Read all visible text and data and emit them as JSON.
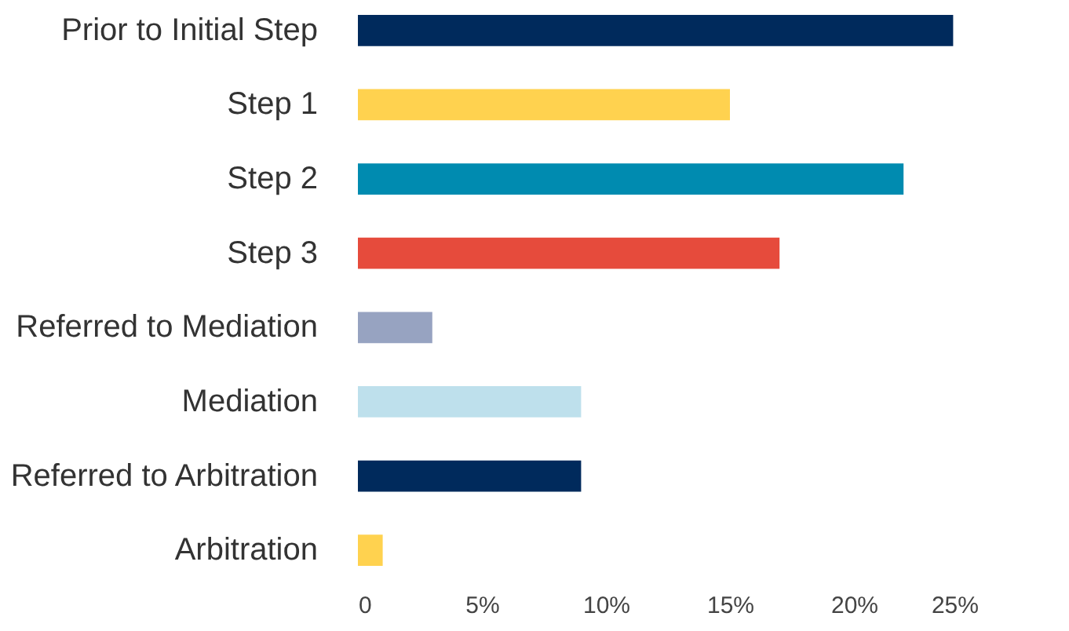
{
  "chart_data": {
    "type": "bar",
    "orientation": "horizontal",
    "categories": [
      "Prior to Initial Step",
      "Step 1",
      "Step 2",
      "Step 3",
      "Referred to Mediation",
      "Mediation",
      "Referred to Arbitration",
      "Arbitration"
    ],
    "values": [
      24,
      15,
      22,
      17,
      3,
      9,
      9,
      1
    ],
    "colors": [
      "#002a5c",
      "#ffd24f",
      "#008bb0",
      "#e64b3c",
      "#97a3c1",
      "#bee0ec",
      "#002a5c",
      "#ffd24f"
    ],
    "xlim": [
      0,
      25
    ],
    "xticks": [
      0,
      {
        "value": 5,
        "label": "5%"
      },
      {
        "value": 10,
        "label": "10%"
      },
      {
        "value": 15,
        "label": "15%"
      },
      {
        "value": 20,
        "label": "20%"
      },
      {
        "value": 25,
        "label": "25%"
      }
    ],
    "grid": false
  }
}
